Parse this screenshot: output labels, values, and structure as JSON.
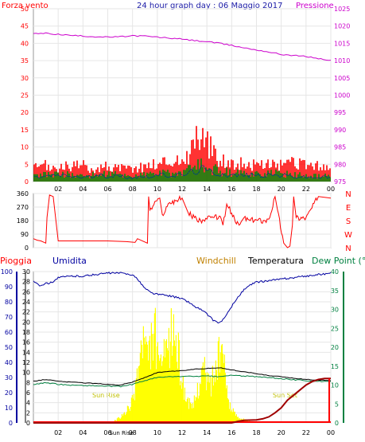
{
  "header": {
    "left_label": "Forza vento",
    "title": "24 hour graph day : 06 Maggio 2017",
    "right_label": "Pressione"
  },
  "legend": {
    "pioggia": "Pioggia",
    "umidita": "Umidita",
    "windchill": "Windchill",
    "temperatura": "Temperatura",
    "dewpoint": "Dew Point (°C"
  },
  "colors": {
    "wind_gust": "#ff0000",
    "wind_avg": "#008000",
    "wind_min": "#004080",
    "pressure": "#cc00cc",
    "direction": "#ff0000",
    "humidity": "#0000a0",
    "temperature": "#000000",
    "dewpoint": "#008040",
    "windchill": "#c08000",
    "solar": "#ffff00",
    "rain": "#ff0000",
    "rain_total": "#a00000",
    "axis_left_bottom": "#0000a0",
    "axis_right_bottom": "#008040"
  },
  "chart_data": [
    {
      "type": "line",
      "name": "wind_and_pressure",
      "x_ticks": [
        "02",
        "04",
        "06",
        "08",
        "10",
        "12",
        "14",
        "16",
        "18",
        "20",
        "22",
        "00"
      ],
      "y_left": {
        "ylim": [
          0,
          50
        ],
        "ticks": [
          0,
          5,
          10,
          15,
          20,
          25,
          30,
          35,
          40,
          45,
          50
        ]
      },
      "y_right": {
        "ylim": [
          975,
          1025
        ],
        "ticks": [
          975,
          980,
          985,
          990,
          995,
          1000,
          1005,
          1010,
          1015,
          1020,
          1025
        ]
      },
      "pressure": {
        "x": [
          0,
          1,
          2,
          3,
          4,
          5,
          6,
          7,
          8,
          9,
          10,
          11,
          12,
          13,
          14,
          15,
          16,
          17,
          18,
          19,
          20,
          21,
          22,
          23,
          24
        ],
        "y": [
          1017.8,
          1017.9,
          1017.6,
          1017.3,
          1017.1,
          1016.9,
          1016.8,
          1016.9,
          1017.2,
          1017.1,
          1016.8,
          1016.5,
          1016.2,
          1015.8,
          1015.5,
          1015.0,
          1014.4,
          1013.7,
          1013.1,
          1012.5,
          1011.8,
          1011.5,
          1011.2,
          1010.6,
          1010.0
        ]
      },
      "wind_gust_envelope": {
        "x": [
          0,
          1,
          2,
          3,
          4,
          5,
          6,
          7,
          8,
          9,
          10,
          11,
          12,
          12.5,
          13,
          13.5,
          14,
          14.5,
          15,
          16,
          17,
          18,
          19,
          20,
          21,
          22,
          23,
          24
        ],
        "y": [
          5,
          6,
          5,
          6,
          6,
          5,
          6,
          5,
          5,
          6,
          7,
          8,
          8,
          10,
          16,
          19,
          15,
          11,
          9,
          7,
          7,
          6,
          7,
          6,
          7,
          6,
          6,
          5
        ]
      },
      "wind_avg_envelope": {
        "x": [
          0,
          2,
          4,
          6,
          8,
          10,
          12,
          13,
          13.5,
          14,
          15,
          16,
          18,
          20,
          22,
          24
        ],
        "y": [
          2,
          3,
          2,
          3,
          2,
          3,
          3,
          5,
          6,
          5,
          4,
          3,
          3,
          3,
          2,
          2
        ]
      }
    },
    {
      "type": "line",
      "name": "wind_direction",
      "y_ticks": [
        0,
        90,
        180,
        270,
        360
      ],
      "compass": [
        "N",
        "W",
        "S",
        "E",
        "N"
      ],
      "x": [
        0,
        0.3,
        0.6,
        1.0,
        1.1,
        1.3,
        1.6,
        2.0,
        4.0,
        6.0,
        7.5,
        8.2,
        8.4,
        9.2,
        9.3,
        9.4,
        10.2,
        10.4,
        11.0,
        12.0,
        12.5,
        13.0,
        13.5,
        14.0,
        14.5,
        15.0,
        15.3,
        15.6,
        16.0,
        16.3,
        16.6,
        17.0,
        17.5,
        18.0,
        18.7,
        19.0,
        19.5,
        19.7,
        20.2,
        20.5,
        20.7,
        20.9,
        21.0,
        21.2,
        22.0,
        23.0,
        24.0
      ],
      "y": [
        60,
        50,
        45,
        30,
        200,
        350,
        340,
        45,
        45,
        45,
        40,
        35,
        60,
        30,
        340,
        250,
        330,
        220,
        300,
        330,
        230,
        200,
        180,
        190,
        200,
        210,
        150,
        290,
        230,
        170,
        150,
        200,
        180,
        185,
        180,
        190,
        340,
        250,
        30,
        0,
        10,
        150,
        340,
        200,
        200,
        340,
        330
      ]
    },
    {
      "type": "line",
      "name": "humidity_temperature_rain",
      "x_ticks": [
        "02",
        "04",
        "06",
        "08",
        "10",
        "12",
        "14",
        "16",
        "18",
        "20",
        "22",
        "00"
      ],
      "y_rain": {
        "ylim": [
          0,
          30
        ],
        "ticks": [
          0,
          2,
          4,
          6,
          8,
          10,
          12,
          14,
          16,
          18,
          20,
          22,
          24,
          26,
          28,
          30
        ]
      },
      "y_humidity": {
        "ylim": [
          0,
          100
        ],
        "ticks": [
          0,
          10,
          20,
          30,
          40,
          50,
          60,
          70,
          80,
          90,
          100
        ]
      },
      "y_temperature": {
        "ylim": [
          0,
          40
        ],
        "ticks": [
          0,
          5,
          10,
          15,
          20,
          25,
          30,
          35,
          40
        ]
      },
      "sun_rise_label": "Sun Rise",
      "sun_set_label": "Sun Set",
      "sunrise_tick_label": "Sun Rise",
      "humidity": {
        "x": [
          0,
          0.5,
          1,
          1.5,
          2,
          3,
          4,
          5,
          6,
          7,
          8,
          8.5,
          9,
          9.5,
          10,
          11,
          12,
          12.5,
          13,
          13.5,
          14,
          14.5,
          15,
          15.5,
          16,
          16.5,
          17,
          17.5,
          18,
          19,
          20,
          21,
          22,
          23,
          24
        ],
        "y": [
          94,
          91,
          92,
          93,
          96,
          97,
          97,
          98,
          99,
          99,
          98,
          94,
          89,
          86,
          85,
          84,
          82,
          80,
          77,
          75,
          72,
          68,
          66,
          70,
          77,
          83,
          88,
          91,
          93,
          94,
          95,
          96,
          97,
          98,
          99
        ]
      },
      "temperature": {
        "x": [
          0,
          1,
          2,
          3,
          4,
          5,
          6,
          7,
          8,
          9,
          10,
          11,
          12,
          13,
          14,
          15,
          16,
          17,
          18,
          19,
          20,
          21,
          22,
          23,
          24
        ],
        "y": [
          11.0,
          11.5,
          11.0,
          10.8,
          10.6,
          10.4,
          10.2,
          10.0,
          10.8,
          12.0,
          13.3,
          13.6,
          13.8,
          14.2,
          14.4,
          14.6,
          14.0,
          13.5,
          13.0,
          12.5,
          12.2,
          11.8,
          11.5,
          11.3,
          11.2
        ]
      },
      "dewpoint": {
        "x": [
          0,
          1,
          2,
          3,
          4,
          5,
          6,
          7,
          8,
          9,
          10,
          11,
          12,
          13,
          14,
          15,
          16,
          17,
          18,
          19,
          20,
          21,
          22,
          23,
          24
        ],
        "y": [
          10.2,
          10.6,
          10.2,
          10.0,
          9.9,
          9.8,
          9.7,
          9.6,
          10.2,
          11.2,
          12.0,
          12.2,
          12.3,
          12.3,
          12.4,
          12.2,
          12.6,
          12.4,
          12.2,
          12.0,
          11.7,
          11.4,
          11.2,
          11.0,
          10.9
        ]
      },
      "solar": {
        "x": [
          5.8,
          6.5,
          7,
          7.5,
          8,
          8.3,
          8.6,
          8.9,
          9.2,
          9.5,
          9.8,
          10.1,
          10.4,
          10.7,
          11.0,
          11.3,
          11.6,
          11.9,
          12.2,
          12.5,
          12.8,
          13.1,
          13.4,
          13.7,
          14.0,
          14.3,
          14.6,
          14.9,
          15.2,
          15.5,
          15.8,
          16.0,
          16.5,
          17.0,
          17.5,
          18.0,
          18.5
        ],
        "y": [
          0,
          0.4,
          1.2,
          2.5,
          5,
          10,
          15,
          20,
          14,
          18,
          22,
          12,
          16,
          14,
          19,
          22,
          18,
          12,
          7,
          5,
          3,
          6,
          10,
          13,
          10,
          9,
          12,
          14,
          18,
          10,
          5,
          3,
          1.5,
          0.8,
          0.3,
          0.1,
          0
        ]
      },
      "rain_total": {
        "x": [
          0,
          16,
          16.5,
          17,
          18,
          18.5,
          19,
          19.5,
          20,
          20.5,
          21,
          21.5,
          22,
          22.5,
          23,
          23.5,
          24
        ],
        "y": [
          0,
          0,
          0.3,
          0.5,
          0.6,
          0.8,
          1.2,
          2.0,
          3.0,
          4.5,
          5.5,
          6.5,
          7.5,
          8.2,
          8.6,
          8.8,
          8.8
        ]
      }
    }
  ]
}
